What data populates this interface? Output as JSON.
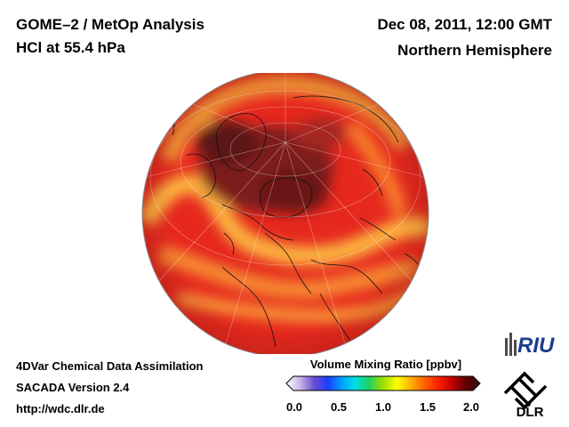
{
  "header": {
    "title_line1": "GOME–2 / MetOp Analysis",
    "title_line2": "HCl at 55.4 hPa",
    "datetime": "Dec 08, 2011, 12:00 GMT",
    "region": "Northern Hemisphere"
  },
  "footer": {
    "line1": "4DVar Chemical Data Assimilation",
    "line2": "SACADA Version 2.4",
    "line3": "http://wdc.dlr.de"
  },
  "colorbar": {
    "title": "Volume Mixing Ratio [ppbv]",
    "range": [
      0.0,
      2.0
    ],
    "ticks": [
      "0.0",
      "0.5",
      "1.0",
      "1.5",
      "2.0"
    ],
    "colors": [
      "#ffffff",
      "#c8b4e6",
      "#6a4fd0",
      "#1e3cff",
      "#00a0ff",
      "#00e0e0",
      "#20d060",
      "#a0e000",
      "#ffff00",
      "#ffb000",
      "#ff6000",
      "#ff2000",
      "#c00000",
      "#600000",
      "#301010"
    ]
  },
  "logos": {
    "riu": "RIU",
    "dlr": "DLR"
  },
  "map": {
    "projection": "orthographic",
    "field_colors": {
      "high": "#7a1a18",
      "mid": "#e6281e",
      "low": "#fcb83c"
    }
  }
}
